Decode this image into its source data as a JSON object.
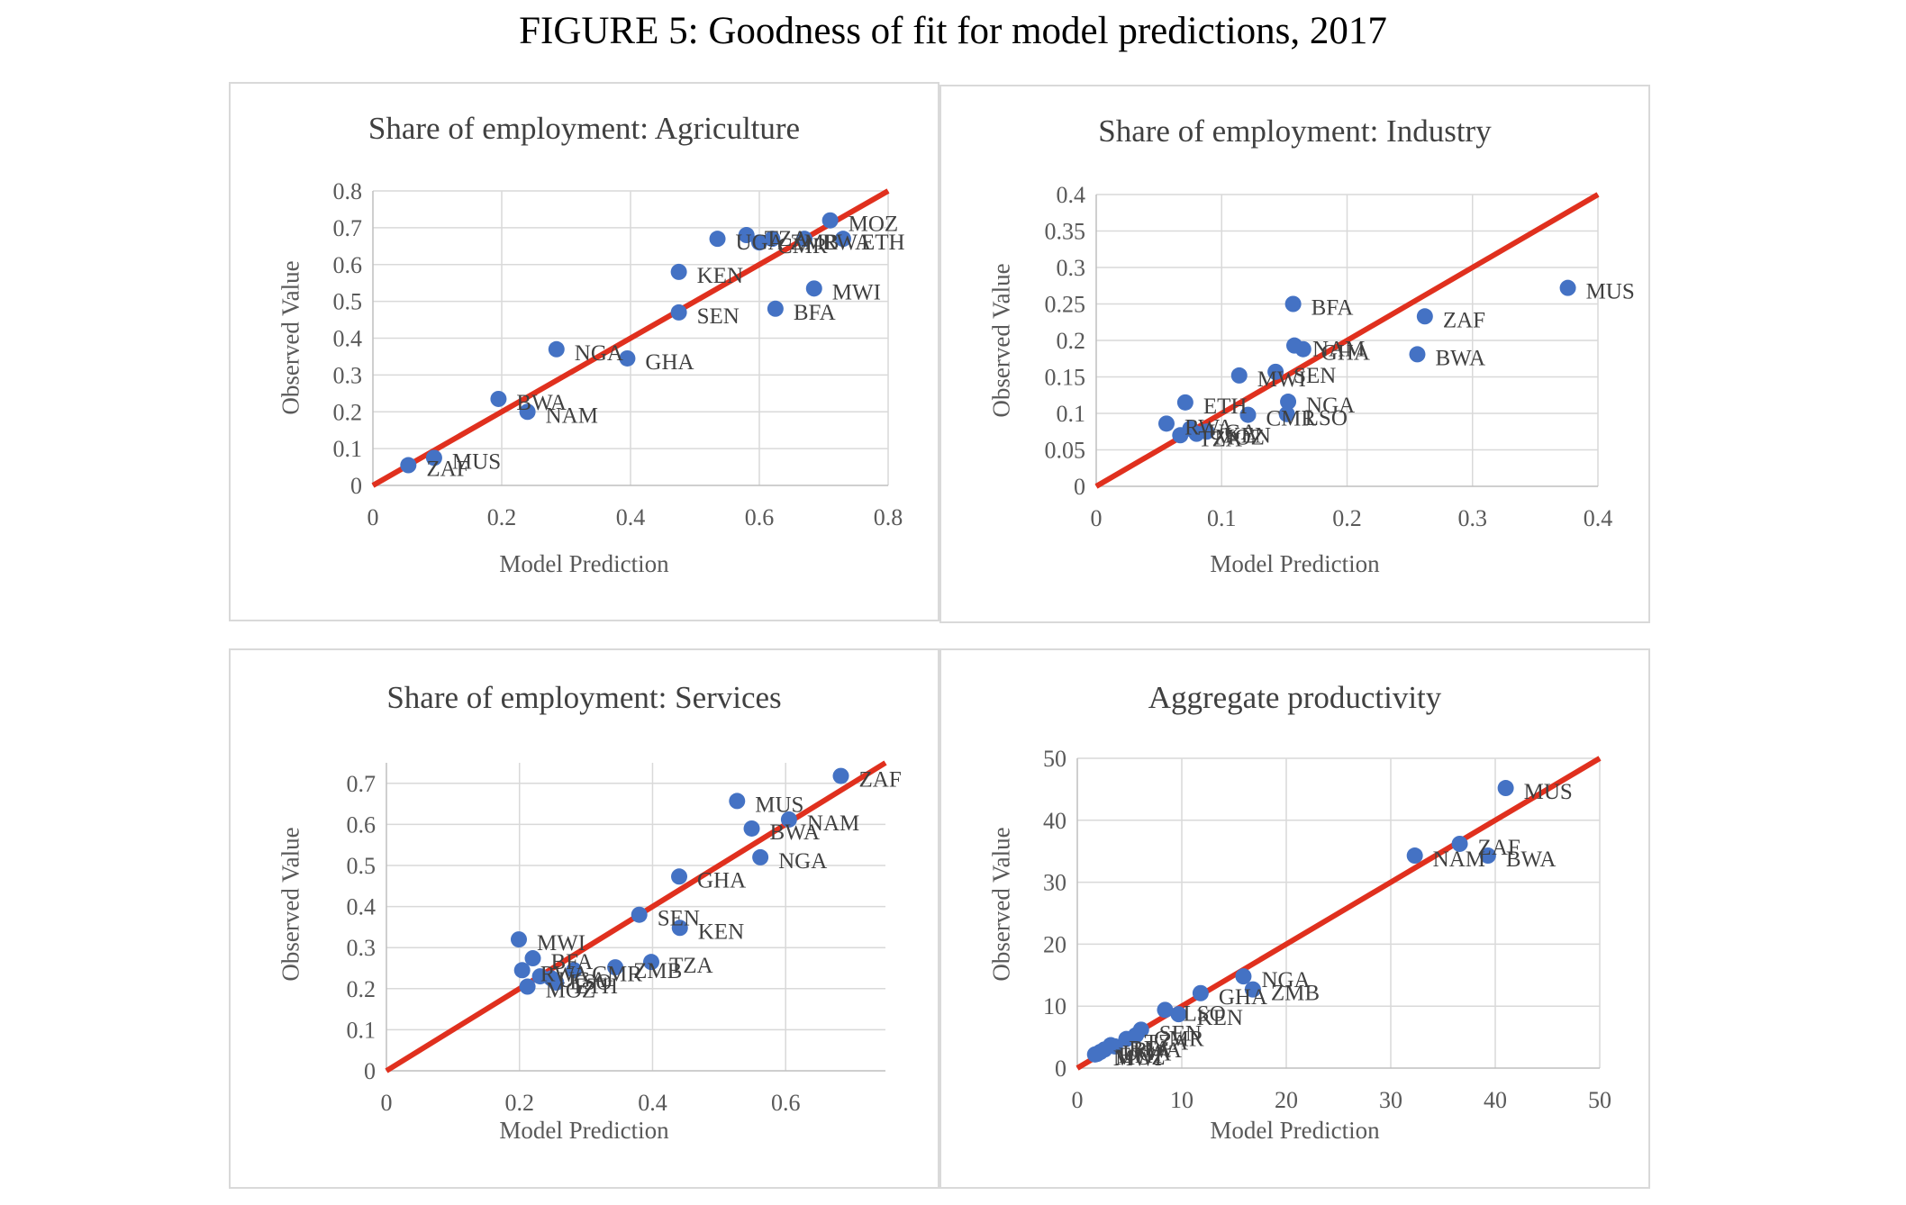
{
  "figure_title": "FIGURE 5: Goodness of fit for model predictions, 2017",
  "colors": {
    "point": "#4472C4",
    "fit_line": "#E0301E",
    "grid": "#d9d9d9",
    "frame": "#d9d9d9",
    "text": "#595959"
  },
  "chart_data": [
    {
      "type": "scatter",
      "title": "Share of employment:  Agriculture",
      "xlabel": "Model Prediction",
      "ylabel": "Observed  Value",
      "xlim": [
        0,
        0.8
      ],
      "ylim": [
        0,
        0.8
      ],
      "xticks": [
        0,
        0.2,
        0.4,
        0.6,
        0.8
      ],
      "xtick_labels": [
        "0",
        "0.2",
        "0.4",
        "0.6",
        "0.8"
      ],
      "yticks": [
        0,
        0.1,
        0.2,
        0.3,
        0.4,
        0.5,
        0.6,
        0.7,
        0.8
      ],
      "ytick_labels": [
        "0",
        "0.1",
        "0.2",
        "0.3",
        "0.4",
        "0.5",
        "0.6",
        "0.7",
        "0.8"
      ],
      "grid": true,
      "fit_line": [
        [
          0,
          0
        ],
        [
          0.8,
          0.8
        ]
      ],
      "points": [
        {
          "label": "MOZ",
          "x": 0.71,
          "y": 0.72
        },
        {
          "label": "ETH",
          "x": 0.73,
          "y": 0.67
        },
        {
          "label": "RWA",
          "x": 0.67,
          "y": 0.67
        },
        {
          "label": "ZMB",
          "x": 0.62,
          "y": 0.67
        },
        {
          "label": "TZA",
          "x": 0.58,
          "y": 0.68
        },
        {
          "label": "UGA",
          "x": 0.535,
          "y": 0.67
        },
        {
          "label": "CMR",
          "x": 0.6,
          "y": 0.66
        },
        {
          "label": "KEN",
          "x": 0.475,
          "y": 0.58
        },
        {
          "label": "MWI",
          "x": 0.685,
          "y": 0.535
        },
        {
          "label": "BFA",
          "x": 0.625,
          "y": 0.48
        },
        {
          "label": "SEN",
          "x": 0.475,
          "y": 0.47
        },
        {
          "label": "NGA",
          "x": 0.285,
          "y": 0.37
        },
        {
          "label": "GHA",
          "x": 0.395,
          "y": 0.345
        },
        {
          "label": "BWA",
          "x": 0.195,
          "y": 0.235
        },
        {
          "label": "NAM",
          "x": 0.24,
          "y": 0.2
        },
        {
          "label": "MUS",
          "x": 0.095,
          "y": 0.075
        },
        {
          "label": "ZAF",
          "x": 0.055,
          "y": 0.055
        }
      ]
    },
    {
      "type": "scatter",
      "title": "Share of employment:  Industry",
      "xlabel": "Model Prediction",
      "ylabel": "Observed  Value",
      "xlim": [
        0,
        0.4
      ],
      "ylim": [
        0,
        0.4
      ],
      "xticks": [
        0,
        0.1,
        0.2,
        0.3,
        0.4
      ],
      "xtick_labels": [
        "0",
        "0.1",
        "0.2",
        "0.3",
        "0.4"
      ],
      "yticks": [
        0,
        0.05,
        0.1,
        0.15,
        0.2,
        0.25,
        0.3,
        0.35,
        0.4
      ],
      "ytick_labels": [
        "0",
        "0.05",
        "0.1",
        "0.15",
        "0.2",
        "0.25",
        "0.3",
        "0.35",
        "0.4"
      ],
      "grid": true,
      "fit_line": [
        [
          0,
          0
        ],
        [
          0.4,
          0.4
        ]
      ],
      "points": [
        {
          "label": "MUS",
          "x": 0.376,
          "y": 0.272
        },
        {
          "label": "BFA",
          "x": 0.157,
          "y": 0.25
        },
        {
          "label": "ZAF",
          "x": 0.262,
          "y": 0.233
        },
        {
          "label": "BWA",
          "x": 0.256,
          "y": 0.181
        },
        {
          "label": "NAM",
          "x": 0.158,
          "y": 0.193
        },
        {
          "label": "GHA",
          "x": 0.165,
          "y": 0.188
        },
        {
          "label": "SEN",
          "x": 0.143,
          "y": 0.157
        },
        {
          "label": "MWI",
          "x": 0.114,
          "y": 0.152
        },
        {
          "label": "ETH",
          "x": 0.071,
          "y": 0.115
        },
        {
          "label": "NGA",
          "x": 0.153,
          "y": 0.116
        },
        {
          "label": "CMR",
          "x": 0.121,
          "y": 0.098
        },
        {
          "label": "LSO",
          "x": 0.152,
          "y": 0.099
        },
        {
          "label": "RWA",
          "x": 0.056,
          "y": 0.086
        },
        {
          "label": "UGA",
          "x": 0.075,
          "y": 0.079
        },
        {
          "label": "KEN",
          "x": 0.088,
          "y": 0.075
        },
        {
          "label": "TZA",
          "x": 0.067,
          "y": 0.07
        },
        {
          "label": "MOZ",
          "x": 0.08,
          "y": 0.072
        }
      ]
    },
    {
      "type": "scatter",
      "title": "Share of employment:  Services",
      "xlabel": "Model Prediction",
      "ylabel": "Observed  Value",
      "xlim": [
        0,
        0.75
      ],
      "ylim": [
        0,
        0.75
      ],
      "xticks": [
        0,
        0.2,
        0.4,
        0.6
      ],
      "xtick_labels": [
        "0",
        "0.2",
        "0.4",
        "0.6"
      ],
      "yticks": [
        0,
        0.1,
        0.2,
        0.3,
        0.4,
        0.5,
        0.6,
        0.7
      ],
      "ytick_labels": [
        "0",
        "0.1",
        "0.2",
        "0.3",
        "0.4",
        "0.5",
        "0.6",
        "0.7"
      ],
      "grid": true,
      "fit_line": [
        [
          0,
          0
        ],
        [
          0.75,
          0.75
        ]
      ],
      "points": [
        {
          "label": "ZAF",
          "x": 0.683,
          "y": 0.718
        },
        {
          "label": "MUS",
          "x": 0.527,
          "y": 0.657
        },
        {
          "label": "NAM",
          "x": 0.605,
          "y": 0.612
        },
        {
          "label": "BWA",
          "x": 0.549,
          "y": 0.59
        },
        {
          "label": "NGA",
          "x": 0.562,
          "y": 0.52
        },
        {
          "label": "GHA",
          "x": 0.44,
          "y": 0.473
        },
        {
          "label": "SEN",
          "x": 0.38,
          "y": 0.38
        },
        {
          "label": "KEN",
          "x": 0.441,
          "y": 0.348
        },
        {
          "label": "MWI",
          "x": 0.199,
          "y": 0.32
        },
        {
          "label": "BFA",
          "x": 0.22,
          "y": 0.274
        },
        {
          "label": "TZA",
          "x": 0.398,
          "y": 0.265
        },
        {
          "label": "ZMB",
          "x": 0.344,
          "y": 0.252
        },
        {
          "label": "CMR",
          "x": 0.282,
          "y": 0.245
        },
        {
          "label": "RWA",
          "x": 0.204,
          "y": 0.245
        },
        {
          "label": "UGA",
          "x": 0.231,
          "y": 0.23
        },
        {
          "label": "LSO",
          "x": 0.248,
          "y": 0.225
        },
        {
          "label": "ETH",
          "x": 0.255,
          "y": 0.215
        },
        {
          "label": "MOZ",
          "x": 0.212,
          "y": 0.205
        }
      ]
    },
    {
      "type": "scatter",
      "title": "Aggregate productivity",
      "xlabel": "Model Prediction",
      "ylabel": "Observed  Value",
      "xlim": [
        0,
        50
      ],
      "ylim": [
        0,
        50
      ],
      "xticks": [
        0,
        10,
        20,
        30,
        40,
        50
      ],
      "xtick_labels": [
        "0",
        "10",
        "20",
        "30",
        "40",
        "50"
      ],
      "yticks": [
        0,
        10,
        20,
        30,
        40,
        50
      ],
      "ytick_labels": [
        "0",
        "10",
        "20",
        "30",
        "40",
        "50"
      ],
      "grid": true,
      "fit_line": [
        [
          0,
          0
        ],
        [
          50,
          50
        ]
      ],
      "points": [
        {
          "label": "MUS",
          "x": 41.0,
          "y": 45.2
        },
        {
          "label": "ZAF",
          "x": 36.6,
          "y": 36.2
        },
        {
          "label": "NAM",
          "x": 32.3,
          "y": 34.3
        },
        {
          "label": "BWA",
          "x": 39.3,
          "y": 34.3
        },
        {
          "label": "NGA",
          "x": 15.9,
          "y": 14.8
        },
        {
          "label": "GHA",
          "x": 11.8,
          "y": 12.1
        },
        {
          "label": "ZMB",
          "x": 16.8,
          "y": 12.7
        },
        {
          "label": "LSO",
          "x": 8.4,
          "y": 9.4
        },
        {
          "label": "KEN",
          "x": 9.7,
          "y": 8.7
        },
        {
          "label": "SEN",
          "x": 6.1,
          "y": 6.2
        },
        {
          "label": "CMR",
          "x": 5.6,
          "y": 5.3
        },
        {
          "label": "TZA",
          "x": 4.7,
          "y": 4.7
        },
        {
          "label": "BFA",
          "x": 3.2,
          "y": 3.7
        },
        {
          "label": "RWA",
          "x": 3.6,
          "y": 3.5
        },
        {
          "label": "UGA",
          "x": 2.6,
          "y": 3.0
        },
        {
          "label": "ETH",
          "x": 2.2,
          "y": 2.6
        },
        {
          "label": "MOZ",
          "x": 1.9,
          "y": 2.3
        },
        {
          "label": "MWI",
          "x": 1.7,
          "y": 2.2
        }
      ]
    }
  ]
}
